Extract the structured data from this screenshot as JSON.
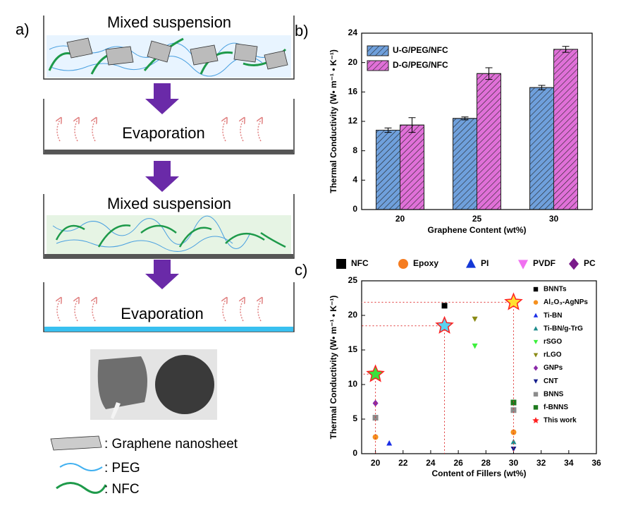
{
  "schematic": {
    "panel_label": "a)",
    "steps": [
      "Mixed suspension",
      "Evaporation",
      "Mixed suspension",
      "Evaporation"
    ],
    "legend": [
      ": Graphene nanosheet",
      ": PEG",
      ": NFC"
    ]
  },
  "chart_data": [
    {
      "type": "bar",
      "panel_label": "b)",
      "x_label": "Graphene Content (wt%)",
      "y_label": "Thermal Conductivity (W• m⁻¹ • K⁻¹)",
      "categories": [
        "20",
        "25",
        "30"
      ],
      "series": [
        {
          "name": "U-G/PEG/NFC",
          "color": "#6fa0dc",
          "values": [
            10.8,
            12.4,
            16.6
          ],
          "errors": [
            0.3,
            0.2,
            0.3
          ]
        },
        {
          "name": "D-G/PEG/NFC",
          "color": "#e070d8",
          "values": [
            11.5,
            18.5,
            21.8
          ],
          "errors": [
            1.0,
            0.8,
            0.4
          ]
        }
      ],
      "ylim": [
        0,
        24
      ],
      "yticks": [
        0,
        4,
        8,
        12,
        16,
        20,
        24
      ],
      "hatch": true,
      "legend": "upper left"
    },
    {
      "type": "scatter",
      "panel_label": "c)",
      "x_label": "Content of Fillers (wt%)",
      "y_label": "Thermal Conductivity (W• m⁻¹ • K⁻¹)",
      "xlim": [
        19,
        36
      ],
      "xticks": [
        20,
        22,
        24,
        26,
        28,
        30,
        32,
        34,
        36
      ],
      "ylim": [
        0,
        25
      ],
      "yticks": [
        0,
        5,
        10,
        15,
        20,
        25
      ],
      "legend": "upper right",
      "matrix_legend": [
        {
          "name": "NFC",
          "color": "#000000",
          "marker": "square"
        },
        {
          "name": "Epoxy",
          "color": "#f57c20",
          "marker": "circle"
        },
        {
          "name": "PI",
          "color": "#1438d6",
          "marker": "triangle-up"
        },
        {
          "name": "PVDF",
          "color": "#f070f0",
          "marker": "triangle-down"
        },
        {
          "name": "PC",
          "color": "#7a1a8a",
          "marker": "diamond"
        }
      ],
      "series": [
        {
          "name": "BNNTs",
          "color": "#000000",
          "marker": "square",
          "x": [
            25
          ],
          "values": [
            21.4
          ]
        },
        {
          "name": "Al₂O₃-AgNPs",
          "color": "#f5901e",
          "marker": "circle",
          "x": [
            20,
            30
          ],
          "values": [
            2.4,
            3.1
          ]
        },
        {
          "name": "Ti-BN",
          "color": "#1a2ee6",
          "marker": "triangle-up",
          "x": [
            21
          ],
          "values": [
            1.5
          ]
        },
        {
          "name": "Ti-BN/g-TrG",
          "color": "#1f8c8c",
          "marker": "triangle-up",
          "x": [
            30
          ],
          "values": [
            1.7
          ]
        },
        {
          "name": "rSGO",
          "color": "#3cf03c",
          "marker": "triangle-down",
          "x": [
            27.2
          ],
          "values": [
            15.6
          ]
        },
        {
          "name": "rLGO",
          "color": "#8a8a14",
          "marker": "triangle-down",
          "x": [
            27.2
          ],
          "values": [
            19.5
          ]
        },
        {
          "name": "GNPs",
          "color": "#8a2aa8",
          "marker": "diamond",
          "x": [
            20
          ],
          "values": [
            7.3
          ]
        },
        {
          "name": "CNT",
          "color": "#141e8c",
          "marker": "triangle-down",
          "x": [
            30
          ],
          "values": [
            0.7
          ]
        },
        {
          "name": "BNNS",
          "color": "#8c8c8c",
          "marker": "square",
          "x": [
            20,
            30
          ],
          "values": [
            5.2,
            6.3
          ]
        },
        {
          "name": "f-BNNS",
          "color": "#1e7a1e",
          "marker": "square",
          "x": [
            30
          ],
          "values": [
            7.4
          ]
        },
        {
          "name": "This work",
          "color": "#ff2020",
          "marker": "star",
          "x": [
            20,
            25,
            30
          ],
          "values": [
            11.5,
            18.5,
            21.9
          ],
          "point_fills": [
            "#3ce03c",
            "#5ad2f0",
            "#ffe030"
          ]
        }
      ]
    }
  ]
}
